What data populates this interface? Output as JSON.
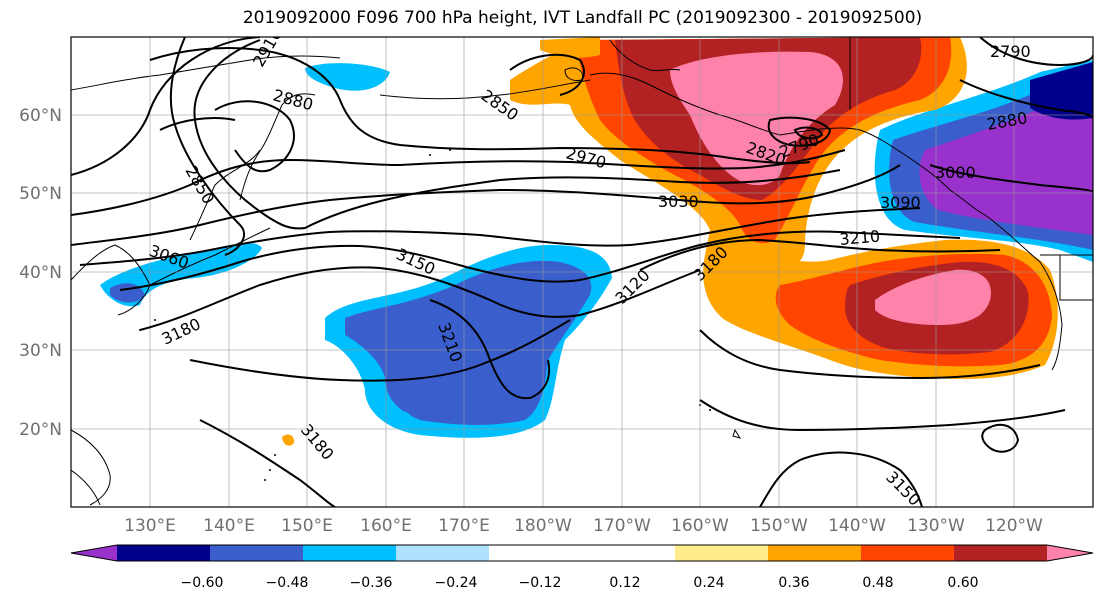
{
  "title": "2019092000 F096 700 hPa height, IVT Landfall PC (2019092300 - 2019092500)",
  "map": {
    "lat_labels": [
      "60°N",
      "50°N",
      "40°N",
      "30°N",
      "20°N"
    ],
    "lon_labels": [
      "130°E",
      "140°E",
      "150°E",
      "160°E",
      "170°E",
      "180°W",
      "170°W",
      "160°W",
      "150°W",
      "140°W",
      "130°W",
      "120°W"
    ],
    "contour_labels": [
      "2910",
      "2880",
      "2850",
      "2820",
      "2790",
      "2790",
      "2880",
      "2970",
      "3030",
      "3090",
      "3000",
      "3060",
      "3150",
      "3120",
      "3180",
      "3210",
      "3180",
      "3210",
      "3180",
      "3150",
      "2850"
    ]
  },
  "colorbar": {
    "colors": [
      "#9932CC",
      "#00008B",
      "#3A5FCD",
      "#00BFFF",
      "#B0E2FF",
      "#FFFFFF",
      "#FFFFFF",
      "#FFEC8B",
      "#FFA500",
      "#FF4500",
      "#B22222",
      "#FF82AB"
    ],
    "tick_labels": [
      "−0.60",
      "−0.48",
      "−0.36",
      "−0.24",
      "−0.12",
      "0.12",
      "0.24",
      "0.36",
      "0.48",
      "0.60"
    ]
  }
}
